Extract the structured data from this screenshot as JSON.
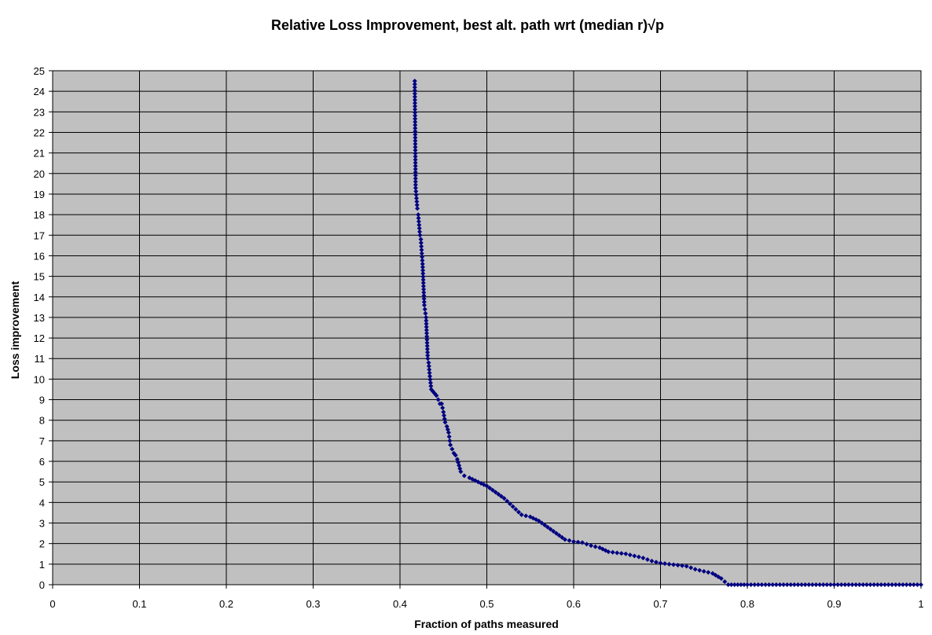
{
  "chart_data": {
    "type": "scatter",
    "title": "Relative Loss Improvement, best alt. path wrt (median r)√p",
    "xlabel": "Fraction of paths measured",
    "ylabel": "Loss improvement",
    "xlim": [
      0,
      1
    ],
    "ylim": [
      0,
      25
    ],
    "x_ticks": [
      "0",
      "0.1",
      "0.2",
      "0.3",
      "0.4",
      "0.5",
      "0.6",
      "0.7",
      "0.8",
      "0.9",
      "1"
    ],
    "y_ticks": [
      "0",
      "1",
      "2",
      "3",
      "4",
      "5",
      "6",
      "7",
      "8",
      "9",
      "10",
      "11",
      "12",
      "13",
      "14",
      "15",
      "16",
      "17",
      "18",
      "19",
      "20",
      "21",
      "22",
      "23",
      "24",
      "25"
    ],
    "grid": true,
    "legend": "none",
    "colors": {
      "plot_background": "#c0c0c0",
      "grid": "#000000",
      "marker": "#000080"
    },
    "marker_shape": "diamond",
    "series": [
      {
        "points": [
          [
            0.417,
            24.5
          ],
          [
            0.418,
            19.3
          ],
          [
            0.42,
            18.3
          ],
          [
            0.421,
            18.0
          ],
          [
            0.423,
            17.0
          ],
          [
            0.424,
            16.8
          ],
          [
            0.426,
            15.6
          ],
          [
            0.428,
            13.6
          ],
          [
            0.43,
            13.0
          ],
          [
            0.432,
            11.0
          ],
          [
            0.433,
            10.8
          ],
          [
            0.434,
            10.3
          ],
          [
            0.436,
            9.5
          ],
          [
            0.438,
            9.4
          ],
          [
            0.44,
            9.3
          ],
          [
            0.442,
            9.2
          ],
          [
            0.444,
            9.0
          ],
          [
            0.446,
            8.8
          ],
          [
            0.448,
            8.8
          ],
          [
            0.45,
            8.4
          ],
          [
            0.452,
            7.9
          ],
          [
            0.454,
            7.7
          ],
          [
            0.456,
            7.4
          ],
          [
            0.458,
            6.8
          ],
          [
            0.46,
            6.6
          ],
          [
            0.462,
            6.4
          ],
          [
            0.464,
            6.3
          ],
          [
            0.466,
            6.1
          ],
          [
            0.468,
            5.8
          ],
          [
            0.47,
            5.5
          ],
          [
            0.474,
            5.3
          ],
          [
            0.48,
            5.2
          ],
          [
            0.49,
            5.0
          ],
          [
            0.5,
            4.8
          ],
          [
            0.51,
            4.5
          ],
          [
            0.52,
            4.2
          ],
          [
            0.53,
            3.8
          ],
          [
            0.54,
            3.4
          ],
          [
            0.55,
            3.3
          ],
          [
            0.56,
            3.1
          ],
          [
            0.57,
            2.8
          ],
          [
            0.58,
            2.5
          ],
          [
            0.59,
            2.2
          ],
          [
            0.6,
            2.1
          ],
          [
            0.61,
            2.05
          ],
          [
            0.62,
            1.9
          ],
          [
            0.63,
            1.8
          ],
          [
            0.64,
            1.6
          ],
          [
            0.65,
            1.55
          ],
          [
            0.66,
            1.5
          ],
          [
            0.67,
            1.4
          ],
          [
            0.68,
            1.3
          ],
          [
            0.69,
            1.15
          ],
          [
            0.7,
            1.05
          ],
          [
            0.71,
            1.0
          ],
          [
            0.72,
            0.95
          ],
          [
            0.73,
            0.9
          ],
          [
            0.74,
            0.75
          ],
          [
            0.75,
            0.65
          ],
          [
            0.76,
            0.55
          ],
          [
            0.77,
            0.3
          ],
          [
            0.778,
            0.0
          ],
          [
            0.8,
            0.0
          ],
          [
            0.825,
            0.0
          ],
          [
            0.85,
            0.0
          ],
          [
            0.875,
            0.0
          ],
          [
            0.9,
            0.0
          ],
          [
            0.925,
            0.0
          ],
          [
            0.95,
            0.0
          ],
          [
            0.975,
            0.0
          ],
          [
            1.0,
            0.0
          ]
        ]
      }
    ]
  }
}
